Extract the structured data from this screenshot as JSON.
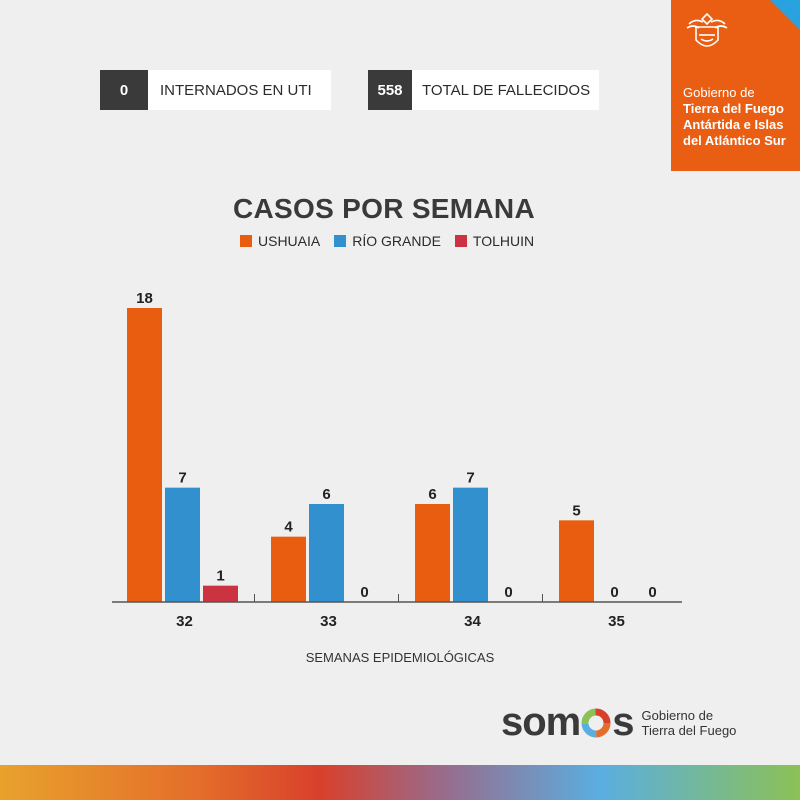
{
  "stats": [
    {
      "value": "0",
      "label": "INTERNADOS EN UTI"
    },
    {
      "value": "558",
      "label": "TOTAL DE FALLECIDOS"
    }
  ],
  "government": {
    "line1": "Gobierno de",
    "line2": "Tierra del Fuego",
    "line3": "Antártida e Islas",
    "line4": "del Atlántico Sur"
  },
  "brand": {
    "logo_word_left": "som",
    "logo_word_right": "s",
    "sub1": "Gobierno de",
    "sub2": "Tierra del Fuego"
  },
  "colors": {
    "ushuaia": "#e85d0f",
    "rio_grande": "#3290cf",
    "tolhuin": "#cc3340",
    "accent_orange": "#e95e12",
    "accent_blue": "#29a3e0"
  },
  "chart_data": {
    "type": "bar",
    "title": "CASOS POR SEMANA",
    "xlabel": "SEMANAS EPIDEMIOLÓGICAS",
    "ylabel": "",
    "categories": [
      "32",
      "33",
      "34",
      "35"
    ],
    "series": [
      {
        "name": "USHUAIA",
        "values": [
          18,
          4,
          6,
          5
        ]
      },
      {
        "name": "RÍO GRANDE",
        "values": [
          7,
          6,
          7,
          0
        ]
      },
      {
        "name": "TOLHUIN",
        "values": [
          1,
          0,
          0,
          0
        ]
      }
    ],
    "ylim": [
      0,
      18
    ],
    "grid": false,
    "legend": "top-center"
  }
}
